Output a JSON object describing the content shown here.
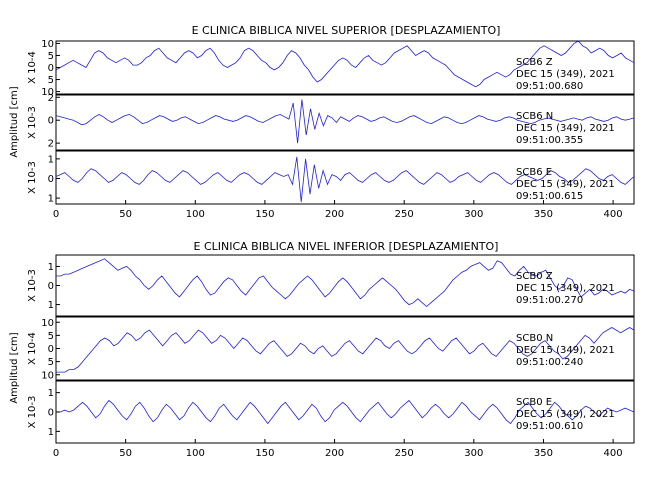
{
  "chart_data": [
    {
      "type": "line",
      "title": "E CLINICA BIBLICA NIVEL SUPERIOR [DESPLAZAMIENTO]",
      "ylabel": "Amplitud [cm]",
      "xlim": [
        0,
        415
      ],
      "x_ticks": [
        "0",
        "50",
        "100",
        "150",
        "200",
        "250",
        "300",
        "350",
        "400"
      ],
      "series": [
        {
          "name": "SCB6 Z",
          "station_lines": [
            "SCB6   Z",
            "DEC 15 (349), 2021",
            "09:51:00.680"
          ],
          "scale_label": "X 10-4",
          "ylim": [
            -11,
            11
          ],
          "y_ticks": [
            {
              "v": 10,
              "t": "10"
            },
            {
              "v": 5,
              "t": "5"
            },
            {
              "v": 0,
              "t": "0"
            },
            {
              "v": -5,
              "t": "5"
            },
            {
              "v": -10,
              "t": "10"
            }
          ],
          "values": [
            -1,
            0,
            1,
            2,
            3,
            2,
            1,
            0,
            3,
            6,
            7,
            6,
            4,
            3,
            2,
            3,
            4,
            3,
            1,
            1,
            2,
            4,
            5,
            7,
            8,
            6,
            4,
            3,
            2,
            4,
            6,
            7,
            6,
            4,
            5,
            7,
            8,
            6,
            3,
            1,
            0,
            1,
            2,
            4,
            7,
            8,
            7,
            5,
            3,
            2,
            0,
            -1,
            0,
            2,
            5,
            7,
            6,
            4,
            1,
            -1,
            -4,
            -6,
            -5,
            -3,
            -1,
            1,
            3,
            4,
            3,
            1,
            0,
            2,
            4,
            5,
            3,
            2,
            1,
            2,
            4,
            6,
            7,
            8,
            9,
            7,
            5,
            6,
            7,
            6,
            4,
            3,
            2,
            1,
            -1,
            -3,
            -4,
            -5,
            -6,
            -7,
            -8,
            -7,
            -5,
            -4,
            -3,
            -2,
            -3,
            -4,
            -3,
            -1,
            0,
            1,
            2,
            4,
            6,
            8,
            9,
            8,
            7,
            6,
            5,
            6,
            8,
            10,
            11,
            9,
            8,
            6,
            7,
            8,
            7,
            5,
            4,
            5,
            6,
            4,
            3,
            2
          ]
        },
        {
          "name": "SCB6 N",
          "station_lines": [
            "SCB6   N",
            "DEC 15 (349), 2021",
            "09:51:00.355"
          ],
          "scale_label": "X 10-3",
          "ylim": [
            -2.6,
            2.2
          ],
          "y_ticks": [
            {
              "v": 2,
              "t": "2"
            },
            {
              "v": 0,
              "t": "0"
            },
            {
              "v": -2,
              "t": "2"
            }
          ],
          "values": [
            0.4,
            0.3,
            0.2,
            0.1,
            0,
            -0.2,
            -0.4,
            -0.3,
            0,
            0.3,
            0.5,
            0.3,
            0,
            -0.2,
            0,
            0.2,
            0.4,
            0.5,
            0.3,
            0,
            -0.3,
            -0.2,
            0,
            0.2,
            0.4,
            0.3,
            0.1,
            -0.1,
            0,
            0.2,
            0.3,
            0.1,
            -0.1,
            -0.3,
            -0.2,
            0,
            0.2,
            0.4,
            0.3,
            0.1,
            0,
            -0.1,
            0,
            0.2,
            0.4,
            0.3,
            0.1,
            -0.1,
            -0.2,
            0,
            0.2,
            0.4,
            0.5,
            0.3,
            0.1,
            1.5,
            -2.0,
            1.8,
            -1.3,
            1.0,
            -0.8,
            0.6,
            -0.5,
            0.4,
            0.2,
            -0.2,
            0.3,
            0.1,
            -0.1,
            0.2,
            0.4,
            0.3,
            0.1,
            -0.1,
            0,
            0.2,
            0.3,
            0.1,
            -0.1,
            -0.2,
            -0.1,
            0.1,
            0.3,
            0.4,
            0.2,
            0,
            -0.2,
            -0.3,
            -0.1,
            0.1,
            0.3,
            0.2,
            0,
            -0.2,
            -0.3,
            -0.2,
            0,
            0.2,
            0.4,
            0.3,
            0.1,
            0,
            -0.1,
            0,
            0.2,
            0.3,
            0.2,
            0,
            -0.1,
            -0.2,
            -0.3,
            -0.2,
            0,
            0.1,
            0.2,
            0.1,
            0,
            -0.1,
            0,
            0.1,
            0.2,
            0.1,
            0,
            0.2,
            0.3,
            0.1,
            0,
            -0.1,
            0,
            0.2,
            0.3,
            0.1,
            0,
            0.1,
            0.2
          ]
        },
        {
          "name": "SCB6 E",
          "station_lines": [
            "SCB6   E",
            "DEC 15 (349), 2021",
            "09:51:00.615"
          ],
          "scale_label": "X 10-3",
          "ylim": [
            -1.3,
            1.4
          ],
          "y_ticks": [
            {
              "v": 1,
              "t": "1"
            },
            {
              "v": 0,
              "t": "0"
            },
            {
              "v": -1,
              "t": "1"
            }
          ],
          "values": [
            0.1,
            0.2,
            0.3,
            0.1,
            -0.1,
            -0.2,
            0,
            0.3,
            0.5,
            0.4,
            0.2,
            0,
            -0.2,
            -0.1,
            0.1,
            0.3,
            0.2,
            0,
            -0.2,
            -0.3,
            -0.1,
            0.2,
            0.4,
            0.3,
            0.1,
            -0.1,
            -0.2,
            0,
            0.2,
            0.4,
            0.3,
            0.1,
            -0.1,
            -0.3,
            -0.2,
            0,
            0.2,
            0.3,
            0.1,
            -0.1,
            -0.2,
            0,
            0.2,
            0.3,
            0.2,
            0,
            -0.2,
            -0.3,
            -0.1,
            0.1,
            0.3,
            0.2,
            0.1,
            0.2,
            -0.3,
            1.1,
            -1.2,
            1.0,
            -0.8,
            0.7,
            -0.5,
            0.4,
            -0.3,
            0.2,
            0.1,
            -0.1,
            0.2,
            0.3,
            0.1,
            -0.1,
            -0.2,
            0,
            0.2,
            0.3,
            0.1,
            -0.1,
            -0.2,
            -0.1,
            0.1,
            0.3,
            0.4,
            0.2,
            0,
            -0.2,
            -0.3,
            -0.1,
            0.1,
            0.3,
            0.2,
            0,
            -0.2,
            -0.1,
            0.1,
            0.2,
            0.3,
            0.1,
            -0.1,
            -0.2,
            0,
            0.2,
            0.3,
            0.2,
            0,
            -0.2,
            -0.3,
            -0.1,
            0.1,
            0.2,
            0.1,
            0,
            -0.1,
            0,
            0.2,
            0.4,
            0.3,
            0.1,
            0,
            -0.2,
            -0.1,
            0.1,
            0.3,
            0.5,
            0.4,
            0.2,
            0,
            -0.1,
            0.1,
            0.2,
            0,
            -0.2,
            -0.3,
            -0.1,
            0.1
          ]
        }
      ]
    },
    {
      "type": "line",
      "title": "E CLINICA BIBLICA NIVEL INFERIOR [DESPLAZAMIENTO]",
      "ylabel": "Amplitud [cm]",
      "xlim": [
        0,
        415
      ],
      "x_ticks": [
        "0",
        "50",
        "100",
        "150",
        "200",
        "250",
        "300",
        "350",
        "400"
      ],
      "series": [
        {
          "name": "SCB0 Z",
          "station_lines": [
            "SCB0   Z",
            "DEC 15 (349), 2021",
            "09:51:00.270"
          ],
          "scale_label": "X 10-3",
          "ylim": [
            -1.6,
            1.6
          ],
          "y_ticks": [
            {
              "v": 1,
              "t": "1"
            },
            {
              "v": 0,
              "t": "0"
            },
            {
              "v": -1,
              "t": "1"
            }
          ],
          "values": [
            0.5,
            0.5,
            0.6,
            0.6,
            0.7,
            0.8,
            0.9,
            1.0,
            1.1,
            1.2,
            1.3,
            1.4,
            1.2,
            1.0,
            0.8,
            0.9,
            1.0,
            0.8,
            0.5,
            0.3,
            0.0,
            -0.2,
            0.0,
            0.3,
            0.5,
            0.2,
            -0.1,
            -0.4,
            -0.6,
            -0.3,
            0.0,
            0.3,
            0.5,
            0.2,
            -0.2,
            -0.5,
            -0.4,
            -0.1,
            0.2,
            0.4,
            0.3,
            0.0,
            -0.3,
            -0.5,
            -0.2,
            0.1,
            0.4,
            0.5,
            0.2,
            -0.1,
            -0.3,
            -0.5,
            -0.7,
            -0.5,
            -0.2,
            0.1,
            0.3,
            0.5,
            0.3,
            0.0,
            -0.3,
            -0.6,
            -0.4,
            -0.1,
            0.2,
            0.4,
            0.2,
            -0.1,
            -0.4,
            -0.7,
            -0.5,
            -0.2,
            0.0,
            0.2,
            0.4,
            0.2,
            0.0,
            -0.2,
            -0.5,
            -0.8,
            -1.0,
            -0.9,
            -0.7,
            -0.9,
            -1.1,
            -0.9,
            -0.7,
            -0.5,
            -0.3,
            0.0,
            0.3,
            0.5,
            0.7,
            0.8,
            1.0,
            1.1,
            1.2,
            1.0,
            0.8,
            0.9,
            1.3,
            1.2,
            0.9,
            0.6,
            0.5,
            0.8,
            1.0,
            0.7,
            0.6,
            0.5,
            0.7,
            0.8,
            0.4,
            0.0,
            -0.2,
            0.0,
            0.4,
            0.3,
            -0.2,
            -0.6,
            -0.4,
            -0.2,
            -0.5,
            -0.4,
            -0.2,
            -0.3,
            -0.5,
            -0.4,
            -0.3,
            -0.4,
            -0.2,
            -0.3
          ]
        },
        {
          "name": "SCB0 N",
          "station_lines": [
            "SCB0   N",
            "DEC 15 (349), 2021",
            "09:51:00.240"
          ],
          "scale_label": "X 10-4",
          "ylim": [
            -12,
            12
          ],
          "y_ticks": [
            {
              "v": 10,
              "t": "10"
            },
            {
              "v": 5,
              "t": "5"
            },
            {
              "v": 0,
              "t": "0"
            },
            {
              "v": -5,
              "t": "5"
            },
            {
              "v": -10,
              "t": "10"
            }
          ],
          "values": [
            -9,
            -9,
            -9,
            -8,
            -8,
            -7,
            -5,
            -3,
            -1,
            1,
            3,
            4,
            3,
            1,
            2,
            4,
            6,
            5,
            3,
            4,
            6,
            7,
            5,
            3,
            1,
            3,
            5,
            6,
            4,
            2,
            3,
            5,
            7,
            6,
            4,
            2,
            3,
            5,
            4,
            2,
            0,
            2,
            4,
            3,
            1,
            -1,
            -2,
            0,
            2,
            3,
            1,
            -1,
            -3,
            -2,
            0,
            2,
            1,
            -1,
            -2,
            0,
            1,
            -1,
            -3,
            -2,
            0,
            2,
            3,
            1,
            -1,
            -2,
            0,
            2,
            4,
            3,
            1,
            0,
            2,
            3,
            1,
            -1,
            -2,
            -1,
            1,
            3,
            4,
            2,
            0,
            -1,
            1,
            3,
            4,
            2,
            0,
            -2,
            -1,
            1,
            2,
            0,
            -2,
            -3,
            -1,
            1,
            3,
            2,
            0,
            -2,
            -3,
            -2,
            0,
            2,
            3,
            1,
            -1,
            -2,
            -4,
            -3,
            -1,
            1,
            3,
            5,
            4,
            2,
            4,
            6,
            7,
            8,
            7,
            6,
            7,
            8,
            7
          ]
        },
        {
          "name": "SCB0 E",
          "station_lines": [
            "SCB0   E",
            "DEC 15 (349), 2021",
            "09:51:00.610"
          ],
          "scale_label": "X 10-3",
          "ylim": [
            -1.6,
            1.6
          ],
          "y_ticks": [
            {
              "v": 1,
              "t": "1"
            },
            {
              "v": 0,
              "t": "0"
            },
            {
              "v": -1,
              "t": "1"
            }
          ],
          "values": [
            0.0,
            0.0,
            0.1,
            0.0,
            0.1,
            0.3,
            0.5,
            0.3,
            0.0,
            -0.3,
            -0.1,
            0.3,
            0.6,
            0.4,
            0.1,
            -0.2,
            -0.4,
            -0.1,
            0.3,
            0.5,
            0.2,
            -0.2,
            -0.5,
            -0.3,
            0.1,
            0.4,
            0.2,
            -0.1,
            -0.4,
            -0.2,
            0.2,
            0.5,
            0.3,
            0.0,
            -0.3,
            -0.5,
            -0.2,
            0.2,
            0.4,
            0.1,
            -0.2,
            -0.4,
            -0.1,
            0.2,
            0.5,
            0.3,
            0.0,
            -0.3,
            -0.6,
            -0.3,
            0.0,
            0.3,
            0.5,
            0.2,
            -0.1,
            -0.4,
            -0.2,
            0.1,
            0.4,
            0.2,
            -0.2,
            -0.5,
            -0.3,
            0.1,
            0.3,
            0.5,
            0.3,
            0.0,
            -0.3,
            -0.5,
            -0.2,
            0.1,
            0.3,
            0.5,
            0.2,
            -0.1,
            -0.3,
            -0.1,
            0.2,
            0.4,
            0.6,
            0.3,
            0.0,
            -0.3,
            -0.1,
            0.2,
            0.4,
            0.2,
            -0.1,
            -0.3,
            -0.1,
            0.2,
            0.5,
            0.3,
            0.0,
            -0.2,
            -0.4,
            -0.1,
            0.2,
            0.4,
            0.2,
            -0.1,
            -0.4,
            -0.6,
            -0.3,
            0.1,
            0.3,
            0.5,
            0.2,
            -0.1,
            -0.3,
            -0.1,
            0.2,
            0.5,
            0.3,
            0.0,
            -0.2,
            -0.4,
            -0.2,
            0.1,
            0.3,
            0.2,
            0.0,
            -0.2,
            0.0,
            0.2,
            0.1,
            0.0,
            0.1,
            0.2,
            0.1,
            0.0
          ]
        }
      ]
    }
  ]
}
